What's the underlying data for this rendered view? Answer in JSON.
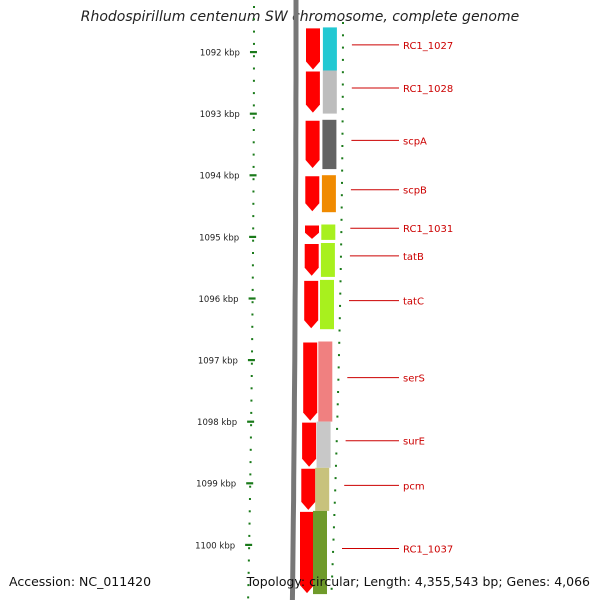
{
  "title": "Rhodospirillum centenum SW chromosome, complete genome",
  "accession": "Accession: NC_011420",
  "topology": "Topology: circular; Length: 4,355,543 bp; Genes: 4,066",
  "ticks": [
    {
      "label": "1092 kbp",
      "kbp": 1092
    },
    {
      "label": "1093 kbp",
      "kbp": 1093
    },
    {
      "label": "1094 kbp",
      "kbp": 1094
    },
    {
      "label": "1095 kbp",
      "kbp": 1095
    },
    {
      "label": "1096 kbp",
      "kbp": 1096
    },
    {
      "label": "1097 kbp",
      "kbp": 1097
    },
    {
      "label": "1098 kbp",
      "kbp": 1098
    },
    {
      "label": "1099 kbp",
      "kbp": 1099
    },
    {
      "label": "1100 kbp",
      "kbp": 1100
    }
  ],
  "genes": [
    {
      "name": "RC1_1027",
      "start_kbp": 1091.6,
      "end_kbp": 1092.3,
      "color": "#22c8d2"
    },
    {
      "name": "RC1_1028",
      "start_kbp": 1092.3,
      "end_kbp": 1093.0,
      "color": "#bdbdbd"
    },
    {
      "name": "scpA",
      "start_kbp": 1093.1,
      "end_kbp": 1093.9,
      "color": "#636363"
    },
    {
      "name": "scpB",
      "start_kbp": 1094.0,
      "end_kbp": 1094.6,
      "color": "#f08a00"
    },
    {
      "name": "RC1_1031",
      "start_kbp": 1094.8,
      "end_kbp": 1095.05,
      "color": "#a8f01e"
    },
    {
      "name": "tatB",
      "start_kbp": 1095.1,
      "end_kbp": 1095.65,
      "color": "#a8f01e"
    },
    {
      "name": "tatC",
      "start_kbp": 1095.7,
      "end_kbp": 1096.5,
      "color": "#a8f01e"
    },
    {
      "name": "serS",
      "start_kbp": 1096.7,
      "end_kbp": 1098.0,
      "color": "#f08080"
    },
    {
      "name": "surE",
      "start_kbp": 1098.0,
      "end_kbp": 1098.75,
      "color": "#c8c8c8"
    },
    {
      "name": "pcm",
      "start_kbp": 1098.75,
      "end_kbp": 1099.45,
      "color": "#c8c27c"
    },
    {
      "name": "RC1_1037",
      "start_kbp": 1099.45,
      "end_kbp": 1100.8,
      "color": "#6f9a2a"
    }
  ],
  "colors": {
    "cds": "#ff0000",
    "label": "#cc0000",
    "tick": "#1a7a1a",
    "backbone": "#777777"
  }
}
